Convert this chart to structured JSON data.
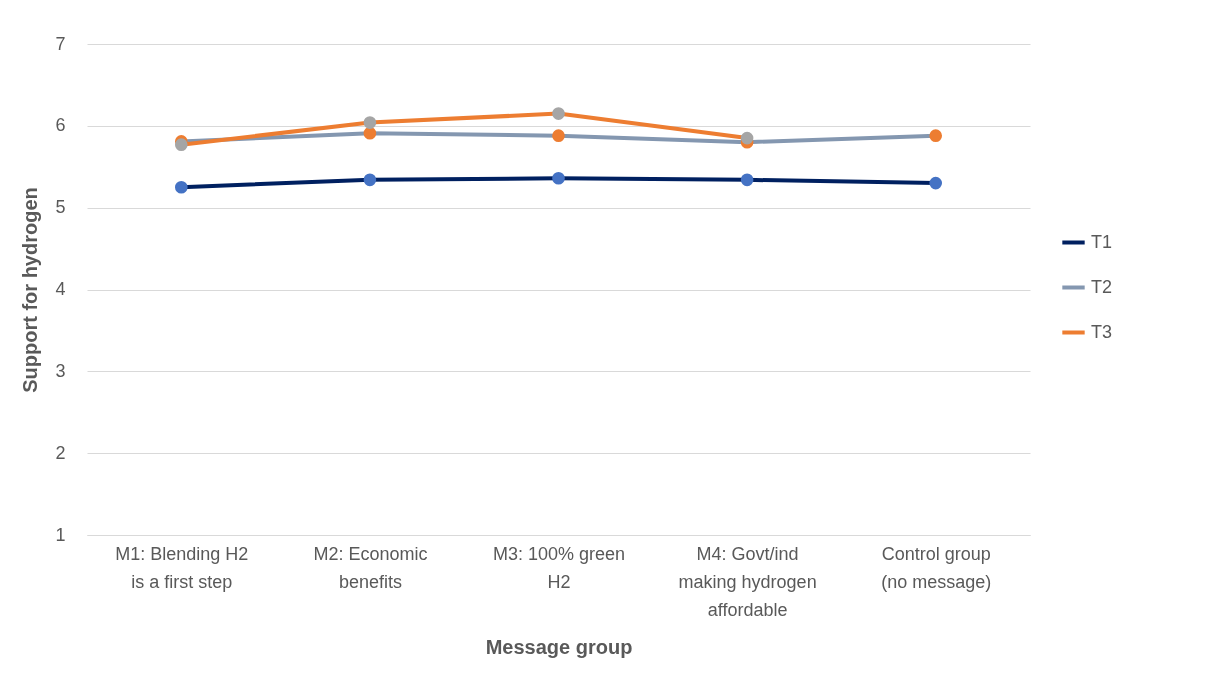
{
  "chart_data": {
    "type": "line",
    "xlabel": "Message group",
    "ylabel": "Support for hydrogen",
    "categories": [
      "M1: Blending H2 is a first step",
      "M2: Economic benefits",
      "M3: 100% green H2",
      "M4: Govt/ind making hydrogen affordable",
      "Control group (no message)"
    ],
    "series": [
      {
        "name": "T1",
        "color": "#002060",
        "colors": [
          "#4472c4",
          "#4472c4",
          "#4472c4",
          "#4472c4",
          "#4472c4"
        ],
        "values": [
          5.25,
          5.34,
          5.36,
          5.34,
          5.3
        ]
      },
      {
        "name": "T2",
        "color": "#8497b0",
        "colors": [
          "#ed7d31",
          "#ed7d31",
          "#ed7d31",
          "#ed7d31",
          "#ed7d31"
        ],
        "values": [
          5.81,
          5.91,
          5.88,
          5.8,
          5.88
        ]
      },
      {
        "name": "T3",
        "color": "#ed7d31",
        "colors": [
          "#a5a5a5",
          "#a5a5a5",
          "#a5a5a5",
          "#a5a5a5",
          null
        ],
        "values": [
          5.77,
          6.04,
          6.15,
          5.85,
          null
        ]
      }
    ],
    "ylim": [
      1,
      7
    ],
    "yticks": [
      1,
      2,
      3,
      4,
      5,
      6,
      7
    ],
    "grid": "y",
    "legend": "right",
    "marker": "circle"
  }
}
